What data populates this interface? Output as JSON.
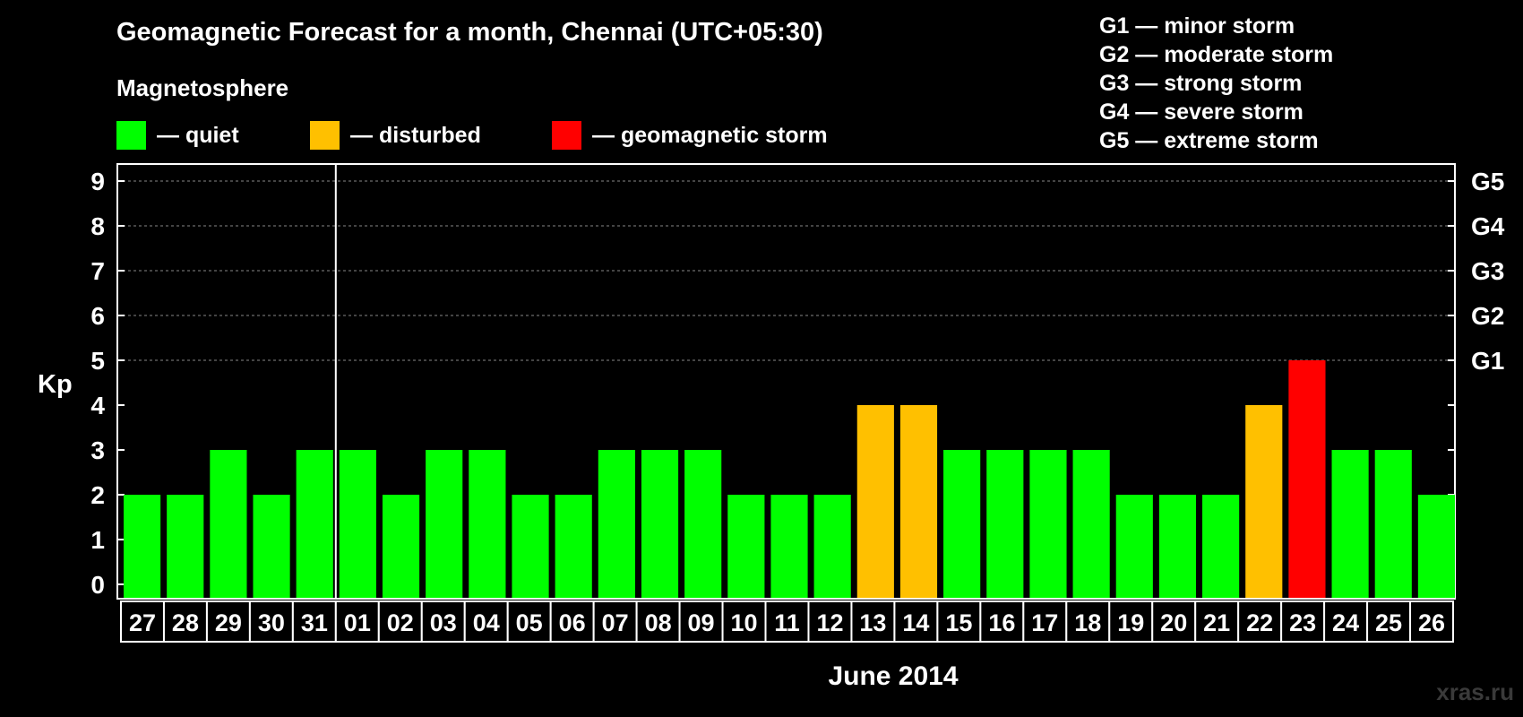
{
  "title": "Geomagnetic Forecast for a month, Chennai (UTC+05:30)",
  "subtitle": "Magnetosphere",
  "legend": [
    {
      "label": "— quiet",
      "color": "#00ff00"
    },
    {
      "label": "— disturbed",
      "color": "#ffc000"
    },
    {
      "label": "— geomagnetic storm",
      "color": "#ff0000"
    }
  ],
  "g_scale": [
    "G1 — minor storm",
    "G2 — moderate storm",
    "G3 — strong storm",
    "G4 — severe storm",
    "G5 — extreme storm"
  ],
  "watermark": "xras.ru",
  "chart_data": {
    "type": "bar",
    "ylabel": "Kp",
    "xlabel": "June 2014",
    "ylim": [
      0,
      9
    ],
    "yticks": [
      "0",
      "1",
      "2",
      "3",
      "4",
      "5",
      "6",
      "7",
      "8",
      "9"
    ],
    "right_ticks": [
      {
        "kp": 5,
        "label": "G1"
      },
      {
        "kp": 6,
        "label": "G2"
      },
      {
        "kp": 7,
        "label": "G3"
      },
      {
        "kp": 8,
        "label": "G4"
      },
      {
        "kp": 9,
        "label": "G5"
      }
    ],
    "grid": "horizontal dashed at Kp 5–9",
    "month_divider_after": "31",
    "categories": [
      "27",
      "28",
      "29",
      "30",
      "31",
      "01",
      "02",
      "03",
      "04",
      "05",
      "06",
      "07",
      "08",
      "09",
      "10",
      "11",
      "12",
      "13",
      "14",
      "15",
      "16",
      "17",
      "18",
      "19",
      "20",
      "21",
      "22",
      "23",
      "24",
      "25",
      "26"
    ],
    "values": [
      2,
      2,
      3,
      2,
      3,
      3,
      2,
      3,
      3,
      2,
      2,
      3,
      3,
      3,
      2,
      2,
      2,
      4,
      4,
      3,
      3,
      3,
      3,
      2,
      2,
      2,
      4,
      5,
      3,
      3,
      2
    ],
    "colors": {
      "quiet": "#00ff00",
      "disturbed": "#ffc000",
      "storm": "#ff0000"
    }
  }
}
